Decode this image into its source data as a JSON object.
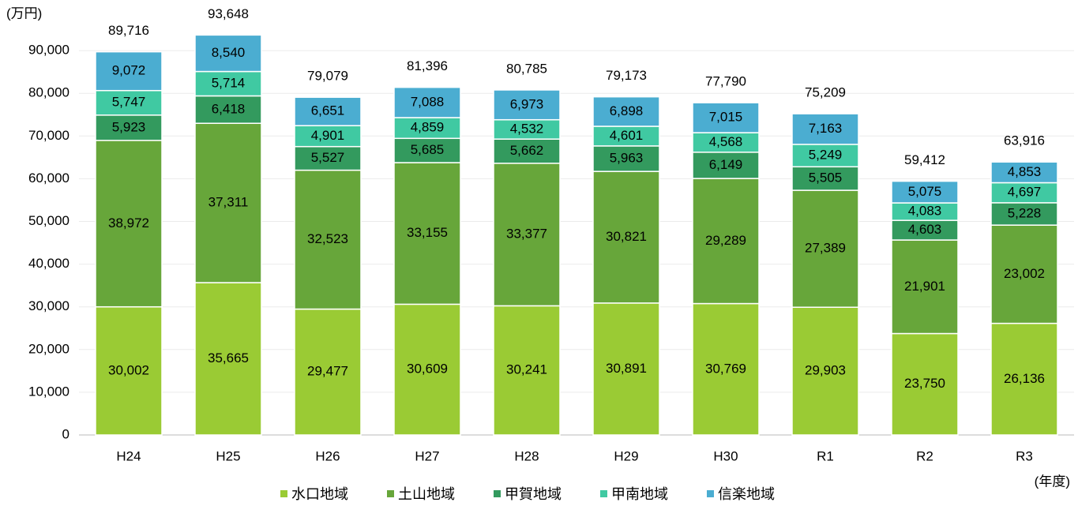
{
  "chart_data": {
    "type": "stacked_bar",
    "y_unit": "(万円)",
    "x_unit": "(年度)",
    "categories": [
      "H24",
      "H25",
      "H26",
      "H27",
      "H28",
      "H29",
      "H30",
      "R1",
      "R2",
      "R3"
    ],
    "series": [
      {
        "name": "水口地域",
        "color": "#9acb34",
        "values": [
          30002,
          35665,
          29477,
          30609,
          30241,
          30891,
          30769,
          29903,
          23750,
          26136
        ],
        "value_labels": [
          "30,002",
          "35,665",
          "29,477",
          "30,609",
          "30,241",
          "30,891",
          "30,769",
          "29,903",
          "23,750",
          "26,136"
        ]
      },
      {
        "name": "土山地域",
        "color": "#67a63a",
        "values": [
          38972,
          37311,
          32523,
          33155,
          33377,
          30821,
          29289,
          27389,
          21901,
          23002
        ],
        "value_labels": [
          "38,972",
          "37,311",
          "32,523",
          "33,155",
          "33,377",
          "30,821",
          "29,289",
          "27,389",
          "21,901",
          "23,002"
        ]
      },
      {
        "name": "甲賀地域",
        "color": "#339a5e",
        "values": [
          5923,
          6418,
          5527,
          5685,
          5662,
          5963,
          6149,
          5505,
          4603,
          5228
        ],
        "value_labels": [
          "5,923",
          "6,418",
          "5,527",
          "5,685",
          "5,662",
          "5,963",
          "6,149",
          "5,505",
          "4,603",
          "5,228"
        ]
      },
      {
        "name": "甲南地域",
        "color": "#40c9a2",
        "values": [
          5747,
          5714,
          4901,
          4859,
          4532,
          4601,
          4568,
          5249,
          4083,
          4697
        ],
        "value_labels": [
          "5,747",
          "5,714",
          "4,901",
          "4,859",
          "4,532",
          "4,601",
          "4,568",
          "5,249",
          "4,083",
          "4,697"
        ]
      },
      {
        "name": "信楽地域",
        "color": "#4badd1",
        "values": [
          9072,
          8540,
          6651,
          7088,
          6973,
          6898,
          7015,
          7163,
          5075,
          4853
        ],
        "value_labels": [
          "9,072",
          "8,540",
          "6,651",
          "7,088",
          "6,973",
          "6,898",
          "7,015",
          "7,163",
          "5,075",
          "4,853"
        ]
      }
    ],
    "totals": [
      89716,
      93648,
      79079,
      81396,
      80785,
      79173,
      77790,
      75209,
      59412,
      63916
    ],
    "total_labels": [
      "89,716",
      "93,648",
      "79,079",
      "81,396",
      "80,785",
      "79,173",
      "77,790",
      "75,209",
      "59,412",
      "63,916"
    ],
    "ylim": [
      0,
      100000
    ],
    "yticks": [
      0,
      {
        "value": 10000,
        "label": "10,000"
      },
      {
        "value": 20000,
        "label": "20,000"
      },
      {
        "value": 30000,
        "label": "30,000"
      },
      {
        "value": 40000,
        "label": "40,000"
      },
      {
        "value": 50000,
        "label": "50,000"
      },
      {
        "value": 60000,
        "label": "60,000"
      },
      {
        "value": 70000,
        "label": "70,000"
      },
      {
        "value": 80000,
        "label": "80,000"
      },
      {
        "value": 90000,
        "label": "90,000"
      }
    ],
    "grid": true,
    "legend": "bottom"
  }
}
